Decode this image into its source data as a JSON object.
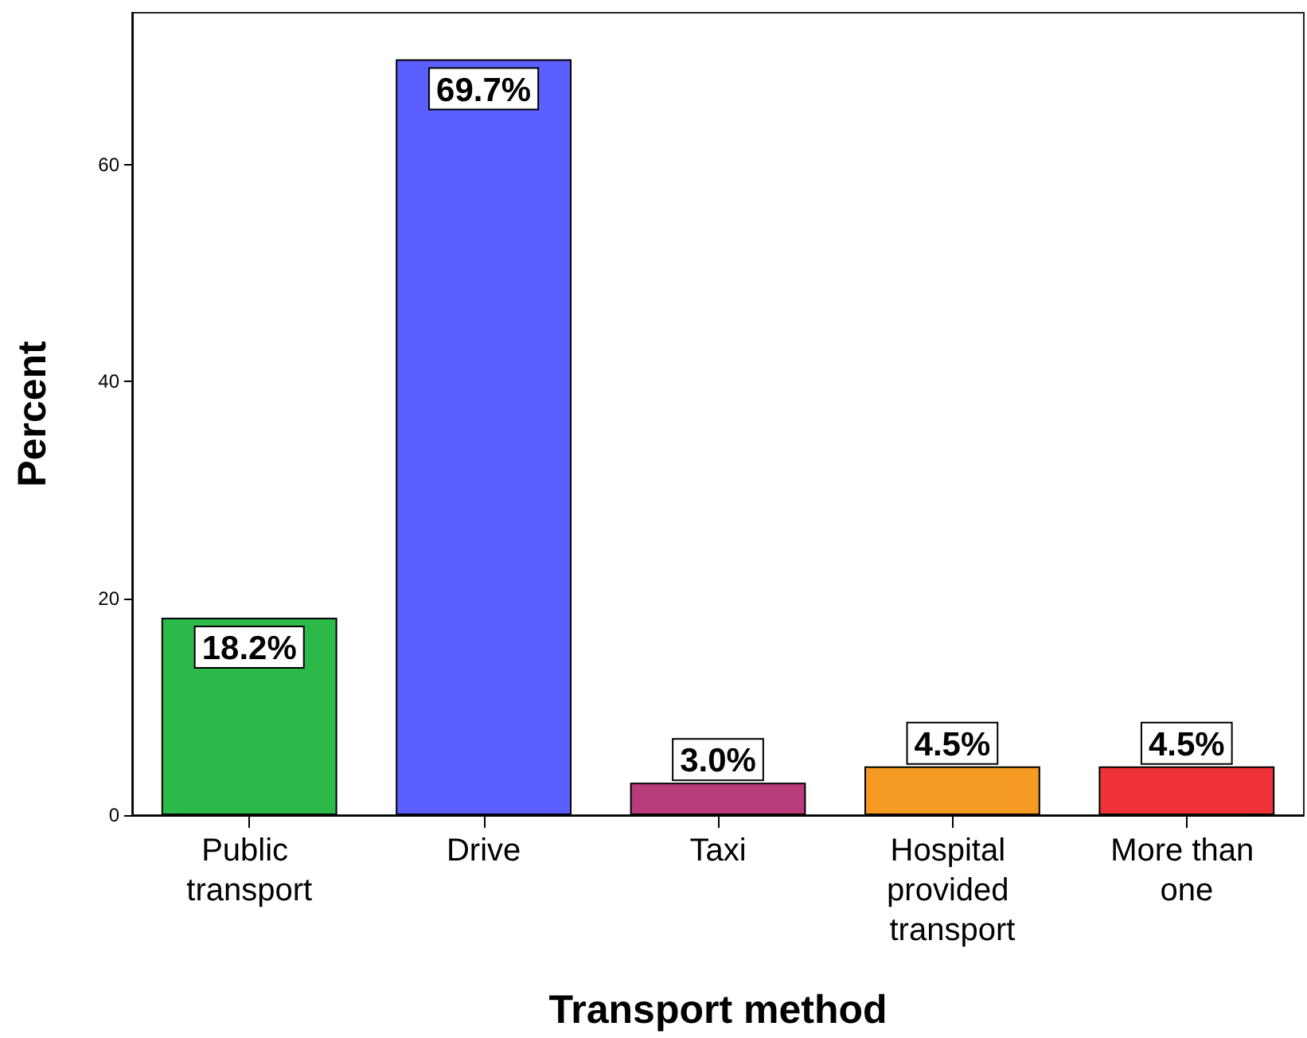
{
  "chart_data": {
    "type": "bar",
    "xlabel": "Transport method",
    "ylabel": "Percent",
    "categories": [
      "Public transport",
      "Drive",
      "Taxi",
      "Hospital provided transport",
      "More than one"
    ],
    "values": [
      18.2,
      69.7,
      3.0,
      4.5,
      4.5
    ],
    "value_labels": [
      "18.2%",
      "69.7%",
      "3.0%",
      "4.5%",
      "4.5%"
    ],
    "colors": [
      "#2db84a",
      "#5b5ffd",
      "#b83c7c",
      "#f59a23",
      "#ee3237"
    ],
    "ylim": [
      0,
      74
    ],
    "yticks": [
      0,
      20,
      40,
      60
    ],
    "grid": false
  }
}
